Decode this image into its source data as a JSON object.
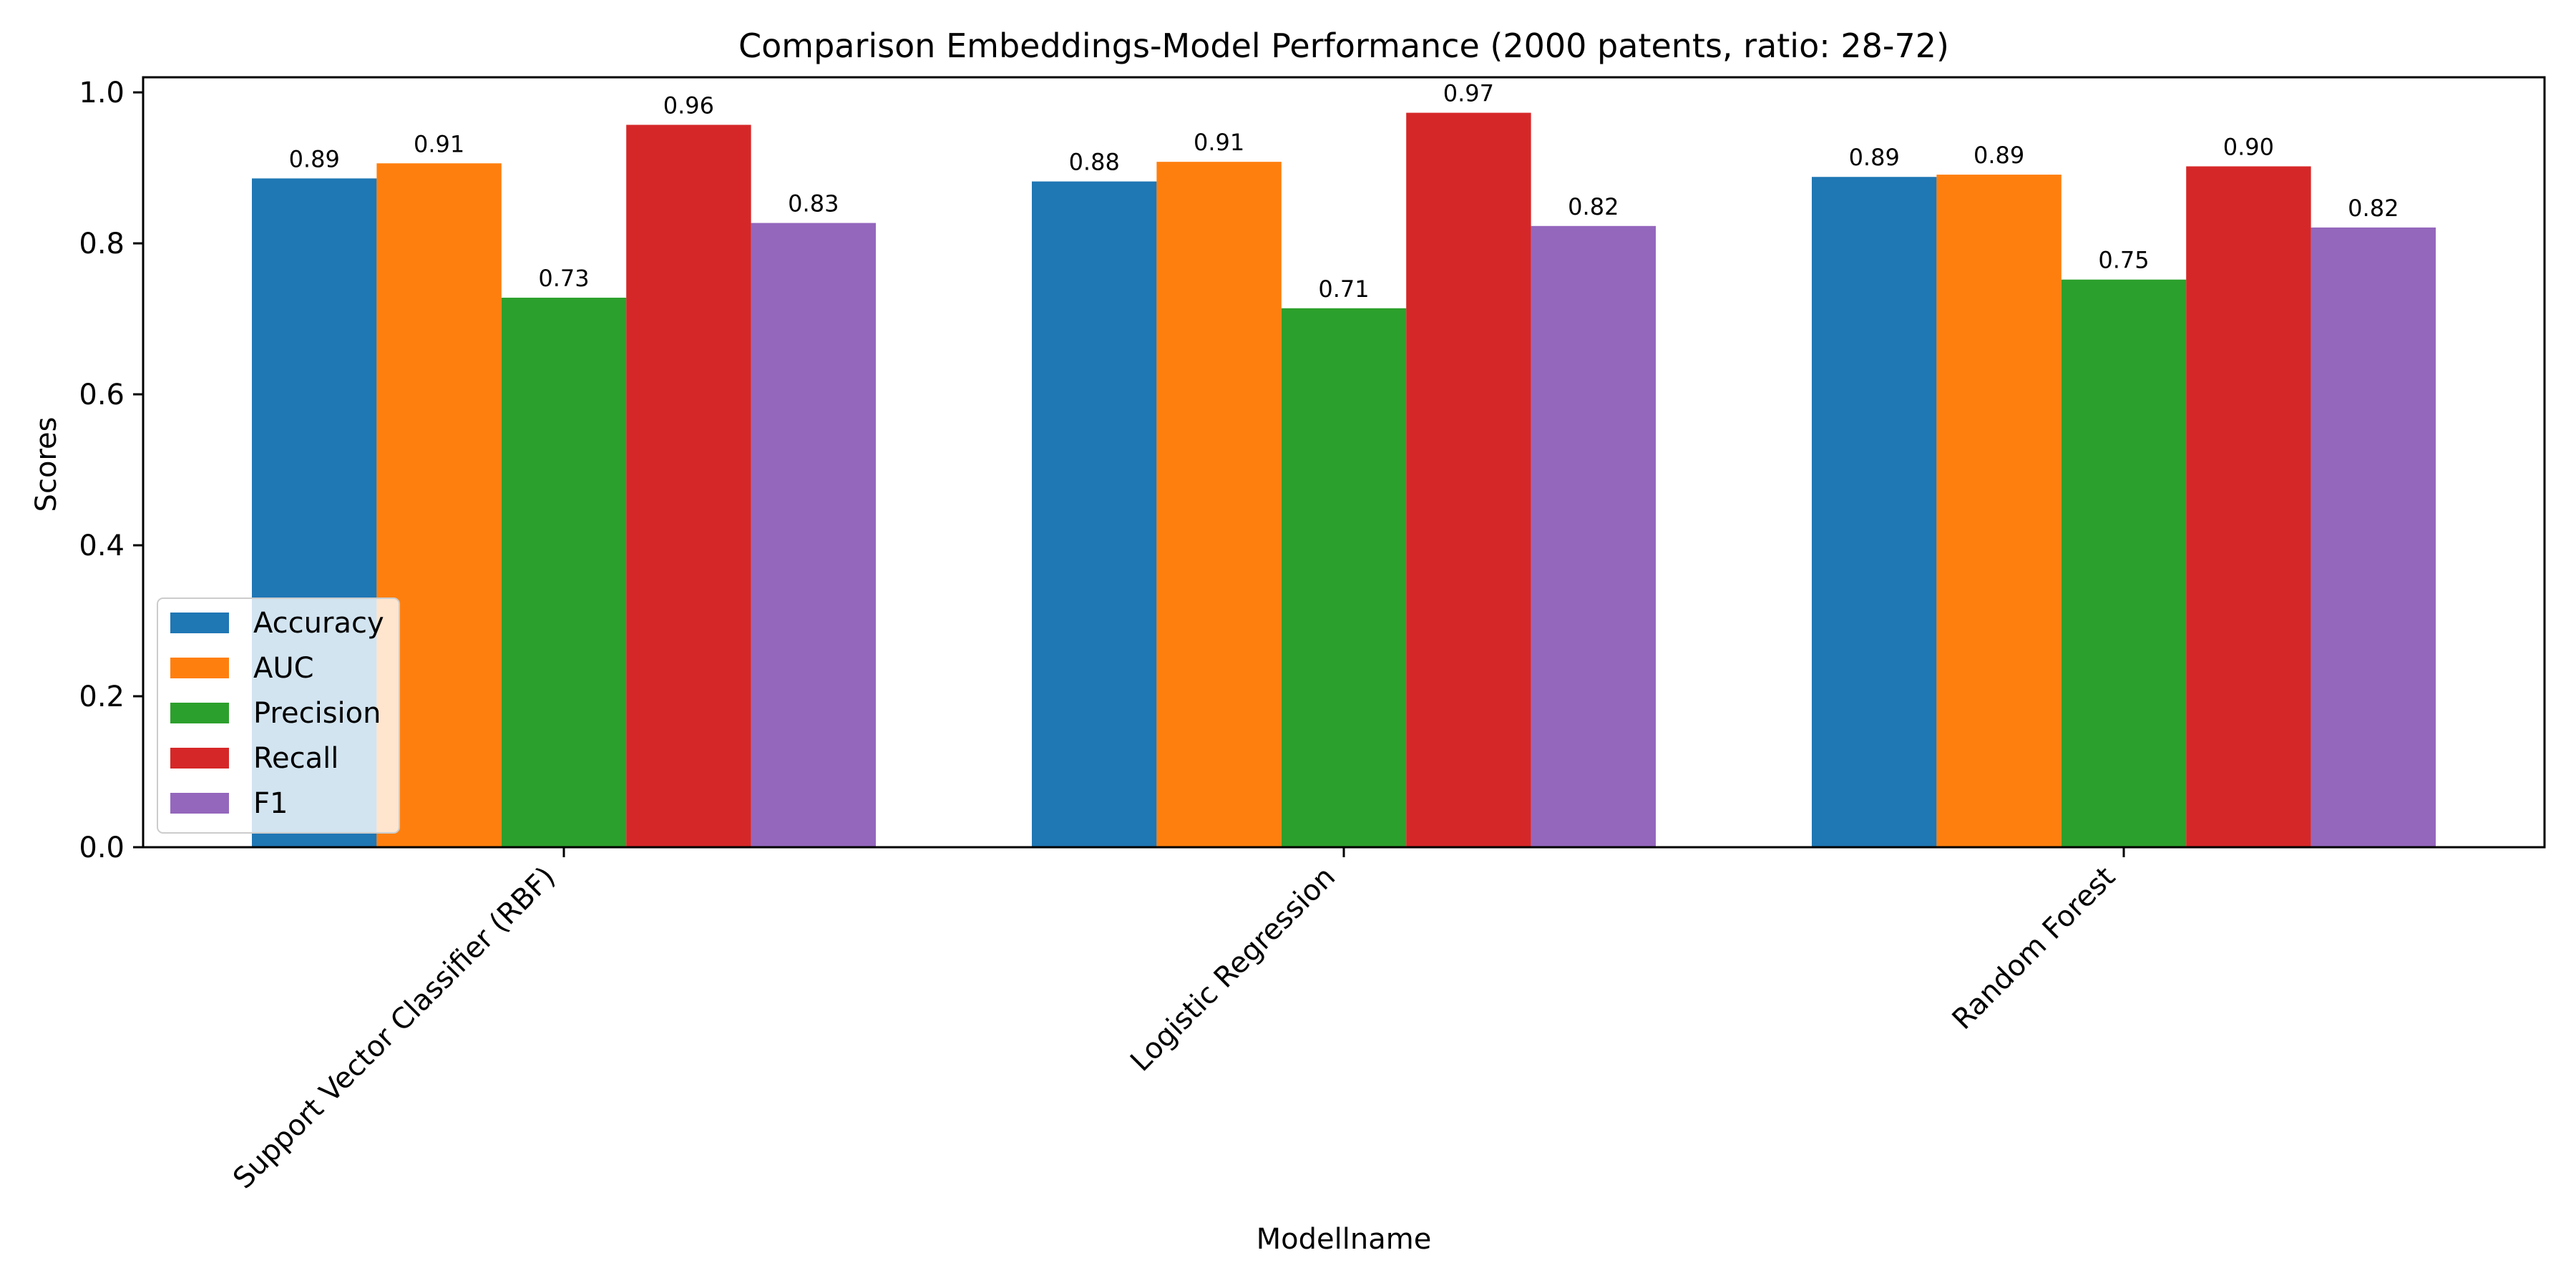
{
  "chart_data": {
    "type": "bar",
    "title": "Comparison Embeddings-Model Performance (2000 patents, ratio: 28-72)",
    "xlabel": "Modellname",
    "ylabel": "Scores",
    "ylim": [
      0,
      1.02
    ],
    "yticks": [
      "0.0",
      "0.2",
      "0.4",
      "0.6",
      "0.8",
      "1.0"
    ],
    "grid": false,
    "legend_position": "lower-left",
    "categories": [
      "Support Vector Classifier (RBF)",
      "Logistic Regression",
      "Random Forest"
    ],
    "series": [
      {
        "name": "Accuracy",
        "color": "#1f77b4",
        "values": [
          0.886,
          0.882,
          0.888
        ],
        "labels": [
          "0.89",
          "0.88",
          "0.89"
        ]
      },
      {
        "name": "AUC",
        "color": "#ff7f0e",
        "values": [
          0.906,
          0.908,
          0.891
        ],
        "labels": [
          "0.91",
          "0.91",
          "0.89"
        ]
      },
      {
        "name": "Precision",
        "color": "#2ca02c",
        "values": [
          0.728,
          0.714,
          0.752
        ],
        "labels": [
          "0.73",
          "0.71",
          "0.75"
        ]
      },
      {
        "name": "Recall",
        "color": "#d62728",
        "values": [
          0.957,
          0.973,
          0.902
        ],
        "labels": [
          "0.96",
          "0.97",
          "0.90"
        ]
      },
      {
        "name": "F1",
        "color": "#9467bd",
        "values": [
          0.827,
          0.823,
          0.821
        ],
        "labels": [
          "0.83",
          "0.82",
          "0.82"
        ]
      }
    ]
  }
}
